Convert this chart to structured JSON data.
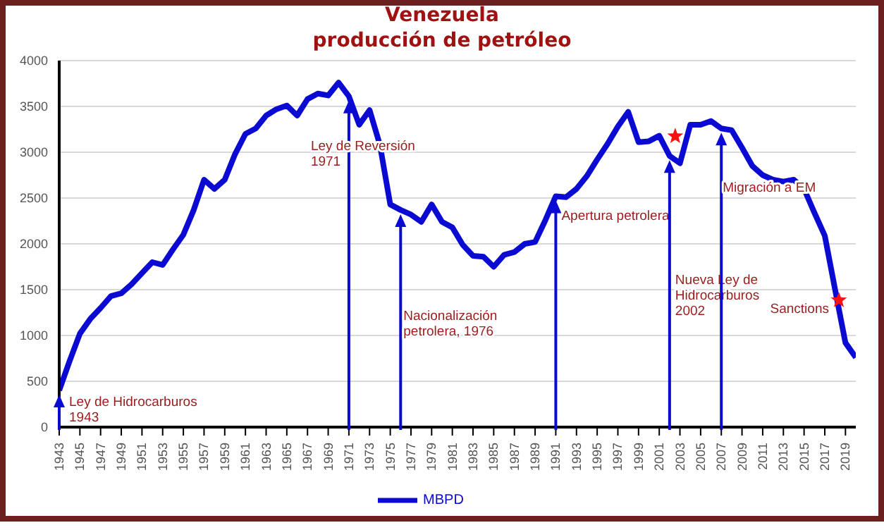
{
  "chart_data": {
    "type": "line",
    "title": "Venezuela\nproducción de petróleo",
    "x": [
      1943,
      1944,
      1945,
      1946,
      1947,
      1948,
      1949,
      1950,
      1951,
      1952,
      1953,
      1954,
      1955,
      1956,
      1957,
      1958,
      1959,
      1960,
      1961,
      1962,
      1963,
      1964,
      1965,
      1966,
      1967,
      1968,
      1969,
      1970,
      1971,
      1972,
      1973,
      1974,
      1975,
      1976,
      1977,
      1978,
      1979,
      1980,
      1981,
      1982,
      1983,
      1984,
      1985,
      1986,
      1987,
      1988,
      1989,
      1990,
      1991,
      1992,
      1993,
      1994,
      1995,
      1996,
      1997,
      1998,
      1999,
      2000,
      2001,
      2002,
      2003,
      2004,
      2005,
      2006,
      2007,
      2008,
      2009,
      2010,
      2011,
      2012,
      2013,
      2014,
      2015,
      2016,
      2017,
      2018,
      2019,
      2020
    ],
    "series": [
      {
        "name": "MBPD",
        "color": "#0a0ad2",
        "values": [
          400,
          720,
          1020,
          1180,
          1300,
          1430,
          1460,
          1560,
          1680,
          1800,
          1770,
          1940,
          2100,
          2370,
          2700,
          2600,
          2700,
          2980,
          3200,
          3260,
          3400,
          3470,
          3510,
          3400,
          3580,
          3640,
          3620,
          3760,
          3610,
          3300,
          3460,
          3080,
          2430,
          2370,
          2320,
          2240,
          2430,
          2240,
          2180,
          1990,
          1870,
          1860,
          1750,
          1880,
          1910,
          2000,
          2020,
          2260,
          2520,
          2510,
          2600,
          2740,
          2920,
          3090,
          3280,
          3440,
          3110,
          3120,
          3180,
          2960,
          2880,
          3300,
          3300,
          3340,
          3260,
          3240,
          3050,
          2850,
          2750,
          2700,
          2680,
          2700,
          2600,
          2340,
          2090,
          1500,
          920,
          760
        ]
      }
    ],
    "xlim": [
      1943,
      2020
    ],
    "xticks": [
      1943,
      1945,
      1947,
      1949,
      1951,
      1953,
      1955,
      1957,
      1959,
      1961,
      1963,
      1965,
      1967,
      1969,
      1971,
      1973,
      1975,
      1977,
      1979,
      1981,
      1983,
      1985,
      1987,
      1989,
      1991,
      1993,
      1995,
      1997,
      1999,
      2001,
      2003,
      2005,
      2007,
      2009,
      2011,
      2013,
      2015,
      2017,
      2019
    ],
    "ylim": [
      0,
      4000
    ],
    "yticks": [
      0,
      500,
      1000,
      1500,
      2000,
      2500,
      3000,
      3500,
      4000
    ],
    "grid": "y",
    "legend": "bottom",
    "marker": "none",
    "line_style": "solid",
    "ref_lines": [
      {
        "axis": "x",
        "value": 1943,
        "label": "Ley de Hidrocarburos\n1943",
        "color": "#0a0ad2"
      },
      {
        "axis": "x",
        "value": 1971,
        "label": "Ley de Reversión\n1971",
        "color": "#0a0ad2"
      },
      {
        "axis": "x",
        "value": 1976,
        "label": "Nacionalización\npetrolera, 1976",
        "color": "#0a0ad2"
      },
      {
        "axis": "x",
        "value": 1991,
        "label": "Apertura petrolera",
        "color": "#0a0ad2"
      },
      {
        "axis": "x",
        "value": 2002,
        "label": "Nueva Ley de\nHidrocarburos\n2002",
        "color": "#0a0ad2"
      },
      {
        "axis": "x",
        "value": 2007,
        "label": "Migración a EM",
        "color": "#0a0ad2"
      }
    ],
    "annotations": [
      "Sanctions"
    ]
  }
}
